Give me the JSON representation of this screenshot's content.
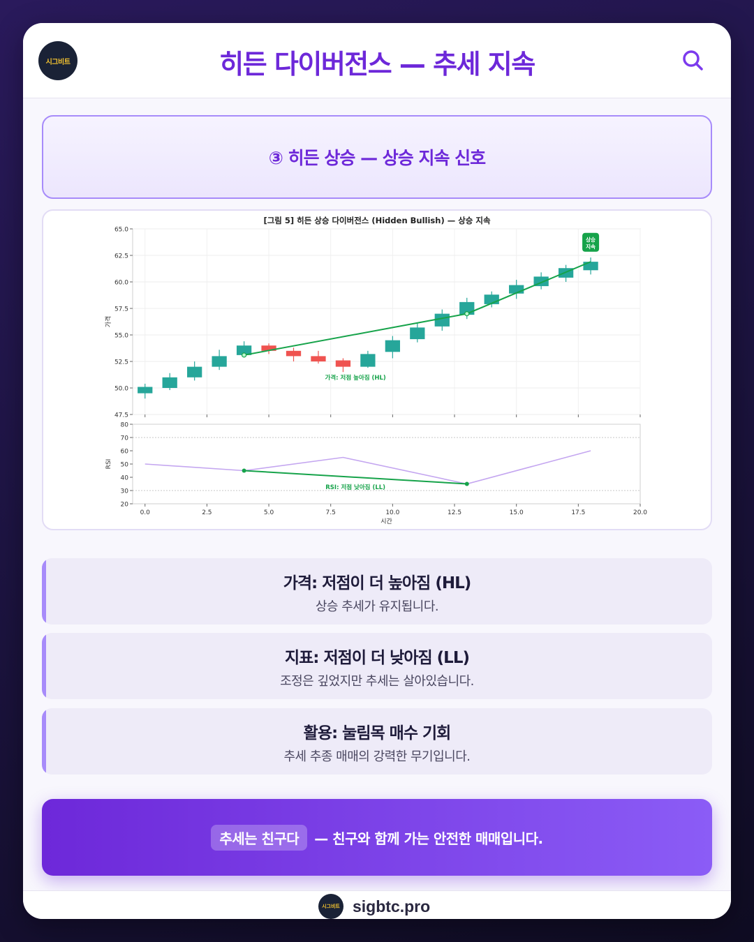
{
  "header": {
    "logo_text": "시그비트",
    "title": "히든 다이버전스 — 추세 지속",
    "search_icon": "search-icon"
  },
  "section": {
    "title": "③ 히든 상승 — 상승 지속 신호"
  },
  "figure": {
    "title": "[그림 5] 히든 상승 다이버전스 (Hidden Bullish) — 상승 지속"
  },
  "chart_data": [
    {
      "type": "candlestick",
      "ylabel": "가격",
      "ylim": [
        47.5,
        65.0
      ],
      "xlim": [
        -0.5,
        20.0
      ],
      "yticks": [
        "47.5",
        "50.0",
        "52.5",
        "55.0",
        "57.5",
        "60.0",
        "62.5",
        "65.0"
      ],
      "grid": true,
      "candles": [
        {
          "x": 0,
          "open": 49.5,
          "close": 50.1,
          "high": 50.4,
          "low": 49.0
        },
        {
          "x": 1,
          "open": 50.0,
          "close": 51.0,
          "high": 51.4,
          "low": 49.8
        },
        {
          "x": 2,
          "open": 51.0,
          "close": 52.0,
          "high": 52.5,
          "low": 50.7
        },
        {
          "x": 3,
          "open": 52.0,
          "close": 53.0,
          "high": 53.6,
          "low": 51.7
        },
        {
          "x": 4,
          "open": 53.1,
          "close": 54.0,
          "high": 54.4,
          "low": 52.9
        },
        {
          "x": 5,
          "open": 54.0,
          "close": 53.5,
          "high": 54.2,
          "low": 53.2
        },
        {
          "x": 6,
          "open": 53.5,
          "close": 53.0,
          "high": 53.8,
          "low": 52.5
        },
        {
          "x": 7,
          "open": 53.0,
          "close": 52.5,
          "high": 53.5,
          "low": 52.3
        },
        {
          "x": 8,
          "open": 52.6,
          "close": 52.0,
          "high": 52.8,
          "low": 51.5
        },
        {
          "x": 9,
          "open": 52.0,
          "close": 53.2,
          "high": 53.5,
          "low": 51.9
        },
        {
          "x": 10,
          "open": 53.4,
          "close": 54.5,
          "high": 54.9,
          "low": 52.8
        },
        {
          "x": 11,
          "open": 54.6,
          "close": 55.7,
          "high": 56.1,
          "low": 54.3
        },
        {
          "x": 12,
          "open": 55.8,
          "close": 57.0,
          "high": 57.4,
          "low": 55.4
        },
        {
          "x": 13,
          "open": 56.9,
          "close": 58.1,
          "high": 58.5,
          "low": 56.5
        },
        {
          "x": 14,
          "open": 57.9,
          "close": 58.8,
          "high": 59.1,
          "low": 57.6
        },
        {
          "x": 15,
          "open": 58.9,
          "close": 59.7,
          "high": 60.2,
          "low": 58.4
        },
        {
          "x": 16,
          "open": 59.6,
          "close": 60.5,
          "high": 60.9,
          "low": 59.3
        },
        {
          "x": 17,
          "open": 60.4,
          "close": 61.3,
          "high": 61.6,
          "low": 60.0
        },
        {
          "x": 18,
          "open": 61.1,
          "close": 61.9,
          "high": 62.3,
          "low": 60.7
        }
      ],
      "trendline": {
        "points": [
          [
            4,
            53.1
          ],
          [
            13,
            57.0
          ],
          [
            18,
            61.9
          ]
        ],
        "label": "가격: 저점 높아짐 (HL)"
      },
      "tag": {
        "x": 18,
        "text": [
          "상승",
          "지속"
        ]
      },
      "colors": {
        "up": "#26a69a",
        "down": "#ef5350",
        "trend": "#16a34a"
      }
    },
    {
      "type": "line",
      "ylabel": "RSI",
      "xlabel": "시간",
      "ylim": [
        20,
        80
      ],
      "xlim": [
        -0.5,
        20.0
      ],
      "yticks": [
        "20",
        "30",
        "40",
        "50",
        "60",
        "70",
        "80"
      ],
      "xticks": [
        "0.0",
        "2.5",
        "5.0",
        "7.5",
        "10.0",
        "12.5",
        "15.0",
        "17.5",
        "20.0"
      ],
      "reference_lines": [
        30,
        70
      ],
      "series": [
        {
          "x": [
            0,
            4,
            8,
            13,
            18
          ],
          "y": [
            50,
            45,
            55,
            35,
            60
          ]
        }
      ],
      "trendline": {
        "points": [
          [
            4,
            45
          ],
          [
            13,
            35
          ]
        ],
        "label": "RSI: 저점 낮아짐 (LL)"
      },
      "colors": {
        "rsi": "#c4a6f0",
        "trend": "#16a34a"
      }
    }
  ],
  "cards": [
    {
      "title": "가격: 저점이 더 높아짐 (HL)",
      "desc": "상승 추세가 유지됩니다."
    },
    {
      "title": "지표: 저점이 더 낮아짐 (LL)",
      "desc": "조정은 깊었지만 추세는 살아있습니다."
    },
    {
      "title": "활용: 눌림목 매수 기회",
      "desc": "추세 추종 매매의 강력한 무기입니다."
    }
  ],
  "cta": {
    "highlight": "추세는 친구다",
    "text": "— 친구와 함께 가는 안전한 매매입니다."
  },
  "footer": {
    "logo_text": "시그비트",
    "site": "sigbtc.pro"
  },
  "colors": {
    "accent": "#6d28d9",
    "accent_light": "#a78bfa",
    "bg_dark": "#1d1442"
  }
}
